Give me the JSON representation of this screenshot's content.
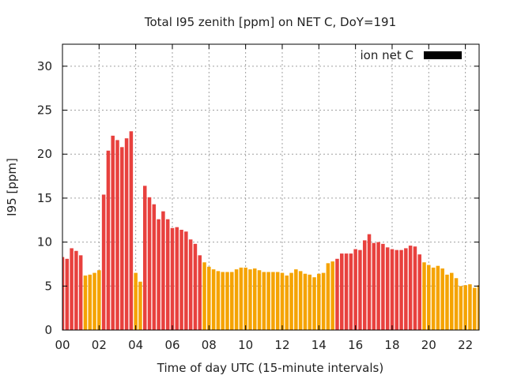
{
  "chart_data": {
    "type": "bar",
    "title": "Total I95 zenith [ppm] on NET C, DoY=191",
    "xlabel": "Time of day UTC (15-minute intervals)",
    "ylabel": "I95 [ppm]",
    "xlim": [
      0,
      22.75
    ],
    "ylim": [
      0,
      32.5
    ],
    "x_ticks": [
      0,
      2,
      4,
      6,
      8,
      10,
      12,
      14,
      16,
      18,
      20,
      22
    ],
    "x_tick_labels": [
      "00",
      "02",
      "04",
      "06",
      "08",
      "10",
      "12",
      "14",
      "16",
      "18",
      "20",
      "22"
    ],
    "y_ticks": [
      0,
      5,
      10,
      15,
      20,
      25,
      30
    ],
    "y_tick_labels": [
      "0",
      "5",
      "10",
      "15",
      "20",
      "25",
      "30"
    ],
    "grid": true,
    "legend": {
      "label": "ion net C",
      "placement": "top-right",
      "swatch_color": "#000000"
    },
    "colors": {
      "high": "#e8413e",
      "low": "#f5a300"
    },
    "x": [
      0.0,
      0.25,
      0.5,
      0.75,
      1.0,
      1.25,
      1.5,
      1.75,
      2.0,
      2.25,
      2.5,
      2.75,
      3.0,
      3.25,
      3.5,
      3.75,
      4.0,
      4.25,
      4.5,
      4.75,
      5.0,
      5.25,
      5.5,
      5.75,
      6.0,
      6.25,
      6.5,
      6.75,
      7.0,
      7.25,
      7.5,
      7.75,
      8.0,
      8.25,
      8.5,
      8.75,
      9.0,
      9.25,
      9.5,
      9.75,
      10.0,
      10.25,
      10.5,
      10.75,
      11.0,
      11.25,
      11.5,
      11.75,
      12.0,
      12.25,
      12.5,
      12.75,
      13.0,
      13.25,
      13.5,
      13.75,
      14.0,
      14.25,
      14.5,
      14.75,
      15.0,
      15.25,
      15.5,
      15.75,
      16.0,
      16.25,
      16.5,
      16.75,
      17.0,
      17.25,
      17.5,
      17.75,
      18.0,
      18.25,
      18.5,
      18.75,
      19.0,
      19.25,
      19.5,
      19.75,
      20.0,
      20.25,
      20.5,
      20.75,
      21.0,
      21.25,
      21.5,
      21.75,
      22.0,
      22.25,
      22.5,
      22.75
    ],
    "values": [
      8.3,
      8.1,
      9.3,
      9.0,
      8.5,
      6.2,
      6.3,
      6.5,
      6.8,
      15.4,
      20.4,
      22.1,
      21.6,
      20.8,
      21.8,
      22.6,
      6.5,
      5.5,
      16.4,
      15.1,
      14.3,
      12.6,
      13.5,
      12.6,
      11.6,
      11.7,
      11.4,
      11.2,
      10.3,
      9.8,
      8.5,
      7.7,
      7.2,
      6.9,
      6.7,
      6.6,
      6.6,
      6.6,
      6.9,
      7.1,
      7.1,
      6.9,
      7.0,
      6.8,
      6.6,
      6.6,
      6.6,
      6.6,
      6.5,
      6.2,
      6.5,
      6.9,
      6.7,
      6.4,
      6.3,
      6.0,
      6.4,
      6.5,
      7.6,
      7.8,
      8.1,
      8.7,
      8.7,
      8.7,
      9.2,
      9.1,
      10.2,
      10.9,
      9.9,
      10.0,
      9.8,
      9.4,
      9.2,
      9.1,
      9.1,
      9.3,
      9.6,
      9.5,
      8.6,
      7.7,
      7.4,
      7.1,
      7.3,
      7.0,
      6.3,
      6.5,
      5.9,
      5.0,
      5.1,
      5.2,
      4.8,
      5.1
    ],
    "bar_levels": [
      "high",
      "high",
      "high",
      "high",
      "high",
      "low",
      "low",
      "low",
      "low",
      "high",
      "high",
      "high",
      "high",
      "high",
      "high",
      "high",
      "low",
      "low",
      "high",
      "high",
      "high",
      "high",
      "high",
      "high",
      "high",
      "high",
      "high",
      "high",
      "high",
      "high",
      "high",
      "low",
      "low",
      "low",
      "low",
      "low",
      "low",
      "low",
      "low",
      "low",
      "low",
      "low",
      "low",
      "low",
      "low",
      "low",
      "low",
      "low",
      "low",
      "low",
      "low",
      "low",
      "low",
      "low",
      "low",
      "low",
      "low",
      "low",
      "low",
      "low",
      "high",
      "high",
      "high",
      "high",
      "high",
      "high",
      "high",
      "high",
      "high",
      "high",
      "high",
      "high",
      "high",
      "high",
      "high",
      "high",
      "high",
      "high",
      "high",
      "low",
      "low",
      "low",
      "low",
      "low",
      "low",
      "low",
      "low",
      "low",
      "low",
      "low",
      "low",
      "low"
    ]
  }
}
